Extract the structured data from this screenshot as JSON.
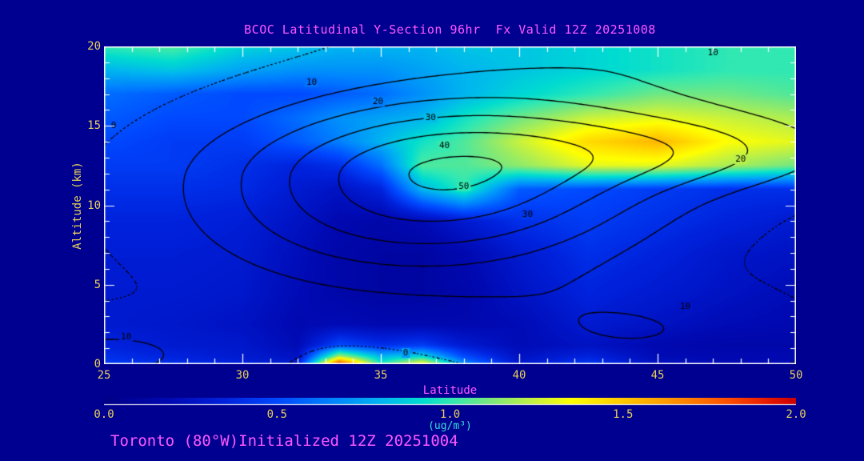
{
  "header": {
    "title": "BCOC Latitudinal Y-Section 96hr  Fx Valid 12Z 20251008"
  },
  "footer": {
    "text": "Toronto (80°W)Initialized 12Z 20251004"
  },
  "colors": {
    "background": "#000090",
    "title_text": "#ff58ff",
    "axis_text": "#e8cf5a",
    "axis_line": "#ffffff",
    "units_text": "#38dede",
    "contour_line": "#000000",
    "contour_label": "#000000"
  },
  "chart_data": {
    "type": "heatmap",
    "title": "BCOC Latitudinal Y-Section 96hr  Fx Valid 12Z 20251008",
    "xlabel": "Latitude",
    "ylabel": "Altitude (km)",
    "xlim": [
      25,
      50
    ],
    "ylim": [
      0,
      20
    ],
    "x_ticks": [
      25,
      30,
      35,
      40,
      45,
      50
    ],
    "y_ticks": [
      0,
      5,
      10,
      15,
      20
    ],
    "x_minor_step": 1,
    "y_minor_step": 1,
    "fill_field": {
      "description": "BCOC concentration (ug/m3), shaded",
      "lats": [
        25,
        27.5,
        30,
        32,
        33.5,
        35,
        36.5,
        38,
        40,
        42.5,
        45,
        47.5,
        50
      ],
      "alts": [
        0,
        0.5,
        1.2,
        2.5,
        4.5,
        7,
        9,
        11,
        12.5,
        14,
        15.5,
        17,
        18.5,
        20
      ],
      "values": [
        [
          0.45,
          0.4,
          0.35,
          0.3,
          1.9,
          1.0,
          1.4,
          0.7,
          0.3,
          0.45,
          0.25,
          0.2,
          0.2
        ],
        [
          0.4,
          0.35,
          0.3,
          0.25,
          1.2,
          0.8,
          0.9,
          0.5,
          0.25,
          0.35,
          0.2,
          0.18,
          0.18
        ],
        [
          0.35,
          0.3,
          0.28,
          0.2,
          0.5,
          0.4,
          0.45,
          0.3,
          0.2,
          0.25,
          0.18,
          0.15,
          0.15
        ],
        [
          0.3,
          0.28,
          0.25,
          0.18,
          0.2,
          0.18,
          0.18,
          0.18,
          0.2,
          0.3,
          0.25,
          0.2,
          0.18
        ],
        [
          0.3,
          0.3,
          0.28,
          0.2,
          0.15,
          0.12,
          0.12,
          0.15,
          0.25,
          0.35,
          0.3,
          0.25,
          0.2
        ],
        [
          0.32,
          0.32,
          0.3,
          0.22,
          0.15,
          0.12,
          0.12,
          0.18,
          0.3,
          0.4,
          0.35,
          0.28,
          0.25
        ],
        [
          0.35,
          0.35,
          0.32,
          0.25,
          0.18,
          0.15,
          0.2,
          0.3,
          0.4,
          0.45,
          0.4,
          0.35,
          0.3
        ],
        [
          0.4,
          0.4,
          0.38,
          0.3,
          0.25,
          0.35,
          0.8,
          1.0,
          0.55,
          0.5,
          0.45,
          0.4,
          0.4
        ],
        [
          0.45,
          0.45,
          0.4,
          0.35,
          0.4,
          0.6,
          1.05,
          1.05,
          1.15,
          1.3,
          1.3,
          1.2,
          1.1
        ],
        [
          0.5,
          0.45,
          0.45,
          0.55,
          0.65,
          0.8,
          0.95,
          1.05,
          1.25,
          1.45,
          1.55,
          1.35,
          1.3
        ],
        [
          0.55,
          0.5,
          0.5,
          0.6,
          0.7,
          0.75,
          0.8,
          0.95,
          1.1,
          1.25,
          1.3,
          1.25,
          1.2
        ],
        [
          0.6,
          0.55,
          0.5,
          0.5,
          0.55,
          0.6,
          0.7,
          0.8,
          0.9,
          1.0,
          1.1,
          1.1,
          1.05
        ],
        [
          0.8,
          0.85,
          0.75,
          0.7,
          0.7,
          0.7,
          0.75,
          0.8,
          0.85,
          0.9,
          0.95,
          1.0,
          1.0
        ],
        [
          1.0,
          1.05,
          0.9,
          0.85,
          0.8,
          0.8,
          0.8,
          0.85,
          0.85,
          0.9,
          0.95,
          1.0,
          1.0
        ]
      ]
    },
    "contour_overlay": {
      "description": "black line contours, concentric around (37.3 lat, 12 km), labeled 0-50",
      "levels": [
        0,
        10,
        20,
        30,
        40,
        50
      ],
      "offset": -4,
      "blobs": [
        {
          "a": 55,
          "x": 37.3,
          "y": 12,
          "sx": 8,
          "syu": 5.0,
          "syd": 6.3,
          "t": -0.25
        },
        {
          "a": 16,
          "x": 47,
          "y": 13.5,
          "sx": 6,
          "syu": 2.5,
          "syd": 2.5,
          "t": 0
        },
        {
          "a": 16,
          "x": 25,
          "y": 0.5,
          "sx": 5,
          "syu": 2.5,
          "syd": 2.5,
          "t": 0
        },
        {
          "a": 13,
          "x": 44.5,
          "y": 2,
          "sx": 6,
          "syu": 3.0,
          "syd": 3.0,
          "t": 0
        },
        {
          "a": 13,
          "x": 48,
          "y": 21,
          "sx": 10,
          "syu": 3.5,
          "syd": 3.5,
          "t": 0
        }
      ],
      "labels": [
        {
          "text": "0",
          "lat": 25.35,
          "alt": 15.0
        },
        {
          "text": "10",
          "lat": 32.5,
          "alt": 17.75
        },
        {
          "text": "20",
          "lat": 34.9,
          "alt": 16.5
        },
        {
          "text": "30",
          "lat": 36.8,
          "alt": 15.5
        },
        {
          "text": "40",
          "lat": 37.3,
          "alt": 13.75
        },
        {
          "text": "50",
          "lat": 38.0,
          "alt": 11.2
        },
        {
          "text": "30",
          "lat": 40.3,
          "alt": 9.4
        },
        {
          "text": "20",
          "lat": 48.0,
          "alt": 12.9
        },
        {
          "text": "10",
          "lat": 47.0,
          "alt": 19.6
        },
        {
          "text": "10",
          "lat": 25.8,
          "alt": 1.7
        },
        {
          "text": "0",
          "lat": 35.9,
          "alt": 0.7
        },
        {
          "text": "10",
          "lat": 46.0,
          "alt": 3.6
        }
      ]
    },
    "colorbar": {
      "min": 0,
      "max": 2,
      "tick_values": [
        0,
        0.5,
        1.0,
        1.5,
        2.0
      ],
      "tick_labels": [
        "0.0",
        "0.5",
        "1.0",
        "1.5",
        "2.0"
      ],
      "units_label": "(ug/m³)",
      "stops": [
        [
          0.0,
          "#000086"
        ],
        [
          0.18,
          "#0008b0"
        ],
        [
          0.35,
          "#0022dd"
        ],
        [
          0.5,
          "#0048ff"
        ],
        [
          0.65,
          "#0080ff"
        ],
        [
          0.8,
          "#00b4f0"
        ],
        [
          0.92,
          "#00dcd0"
        ],
        [
          1.0,
          "#2ee8b4"
        ],
        [
          1.12,
          "#7ce87a"
        ],
        [
          1.25,
          "#c8f23c"
        ],
        [
          1.35,
          "#ffff00"
        ],
        [
          1.5,
          "#ffc800"
        ],
        [
          1.65,
          "#ff9000"
        ],
        [
          1.8,
          "#ff5000"
        ],
        [
          1.92,
          "#e81800"
        ],
        [
          2.0,
          "#c80000"
        ]
      ]
    }
  }
}
